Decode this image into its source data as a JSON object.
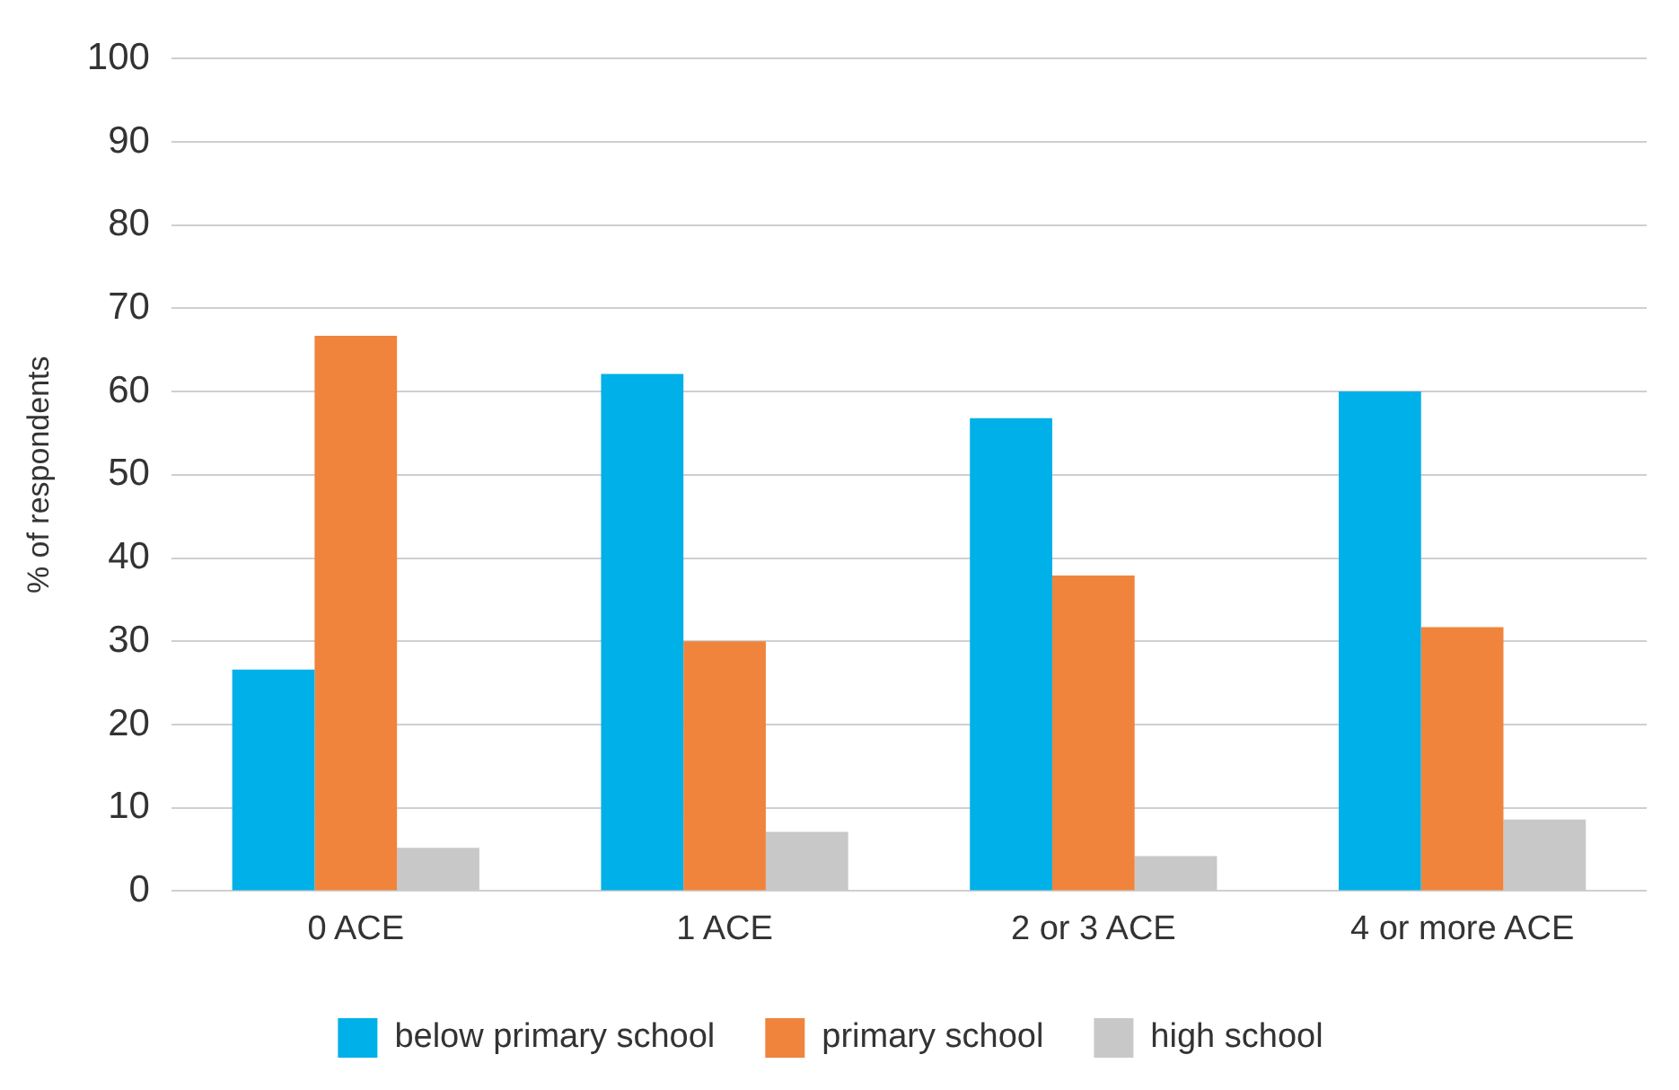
{
  "chart_data": {
    "type": "bar",
    "ylabel": "% of respondents",
    "categories": [
      "0 ACE",
      "1 ACE",
      "2 or 3 ACE",
      "4 or more ACE"
    ],
    "series": [
      {
        "name": "below primary school",
        "color": "#00b0e8",
        "values": [
          26.6,
          62.1,
          56.8,
          60.0
        ]
      },
      {
        "name": "primary school",
        "color": "#f0843c",
        "values": [
          66.7,
          30.0,
          37.9,
          31.7
        ]
      },
      {
        "name": "high school",
        "color": "#c8c8c8",
        "values": [
          5.2,
          7.1,
          4.2,
          8.6
        ]
      }
    ],
    "ylim": [
      0,
      100
    ],
    "yticks": [
      0,
      10,
      20,
      30,
      40,
      50,
      60,
      70,
      80,
      90,
      100
    ],
    "grid": "y",
    "legend": "bottom"
  }
}
